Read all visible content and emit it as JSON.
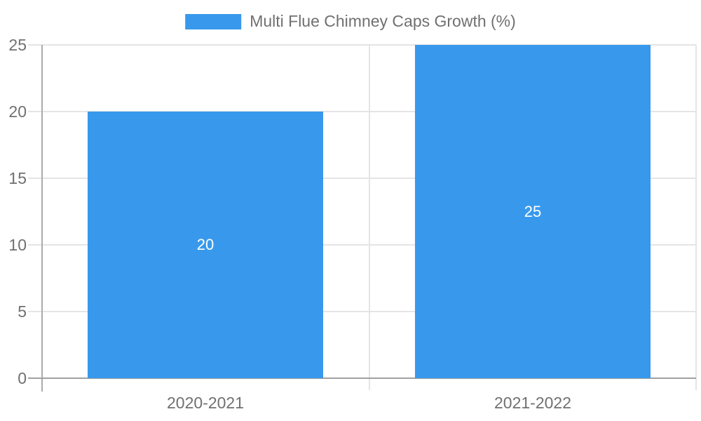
{
  "chart_data": {
    "type": "bar",
    "legend": "Multi Flue Chimney Caps Growth (%)",
    "legend_position": "top-center",
    "categories": [
      "2020-2021",
      "2021-2022"
    ],
    "series": [
      {
        "name": "Multi Flue Chimney Caps Growth (%)",
        "values": [
          20,
          25
        ]
      }
    ],
    "value_labels": [
      "20",
      "25"
    ],
    "xlabel": "",
    "ylabel": "",
    "ylim": [
      0,
      25
    ],
    "yticks": [
      0,
      5,
      10,
      15,
      20,
      25
    ],
    "grid": true,
    "colors": {
      "bar": "#3899EC",
      "text": "#707070",
      "grid": "#e5e5e5",
      "axis_y": "#ababab",
      "axis_x": "#a0a0a0",
      "value_label": "#ffffff",
      "background": "#ffffff"
    }
  }
}
